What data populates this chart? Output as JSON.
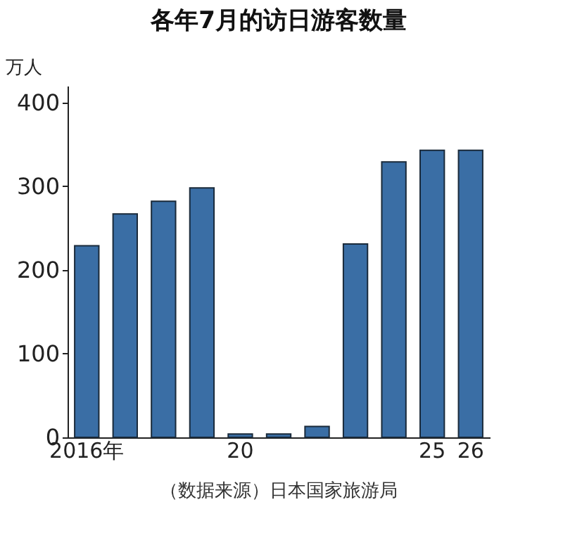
{
  "chart_data": {
    "type": "bar",
    "title": "各年7月的访日游客数量",
    "ylabel": "万人",
    "categories": [
      "2016年",
      null,
      null,
      null,
      "20",
      null,
      null,
      null,
      null,
      "25",
      "26"
    ],
    "values": [
      229,
      267,
      282,
      298,
      4,
      4,
      13,
      231,
      329,
      343,
      343
    ],
    "color": "#3a6ea5",
    "ylim": [
      0,
      420
    ],
    "yticks": [
      0,
      100,
      200,
      300,
      400
    ],
    "grid": false,
    "annotations": [
      "（数据来源）日本国家旅游局"
    ]
  }
}
